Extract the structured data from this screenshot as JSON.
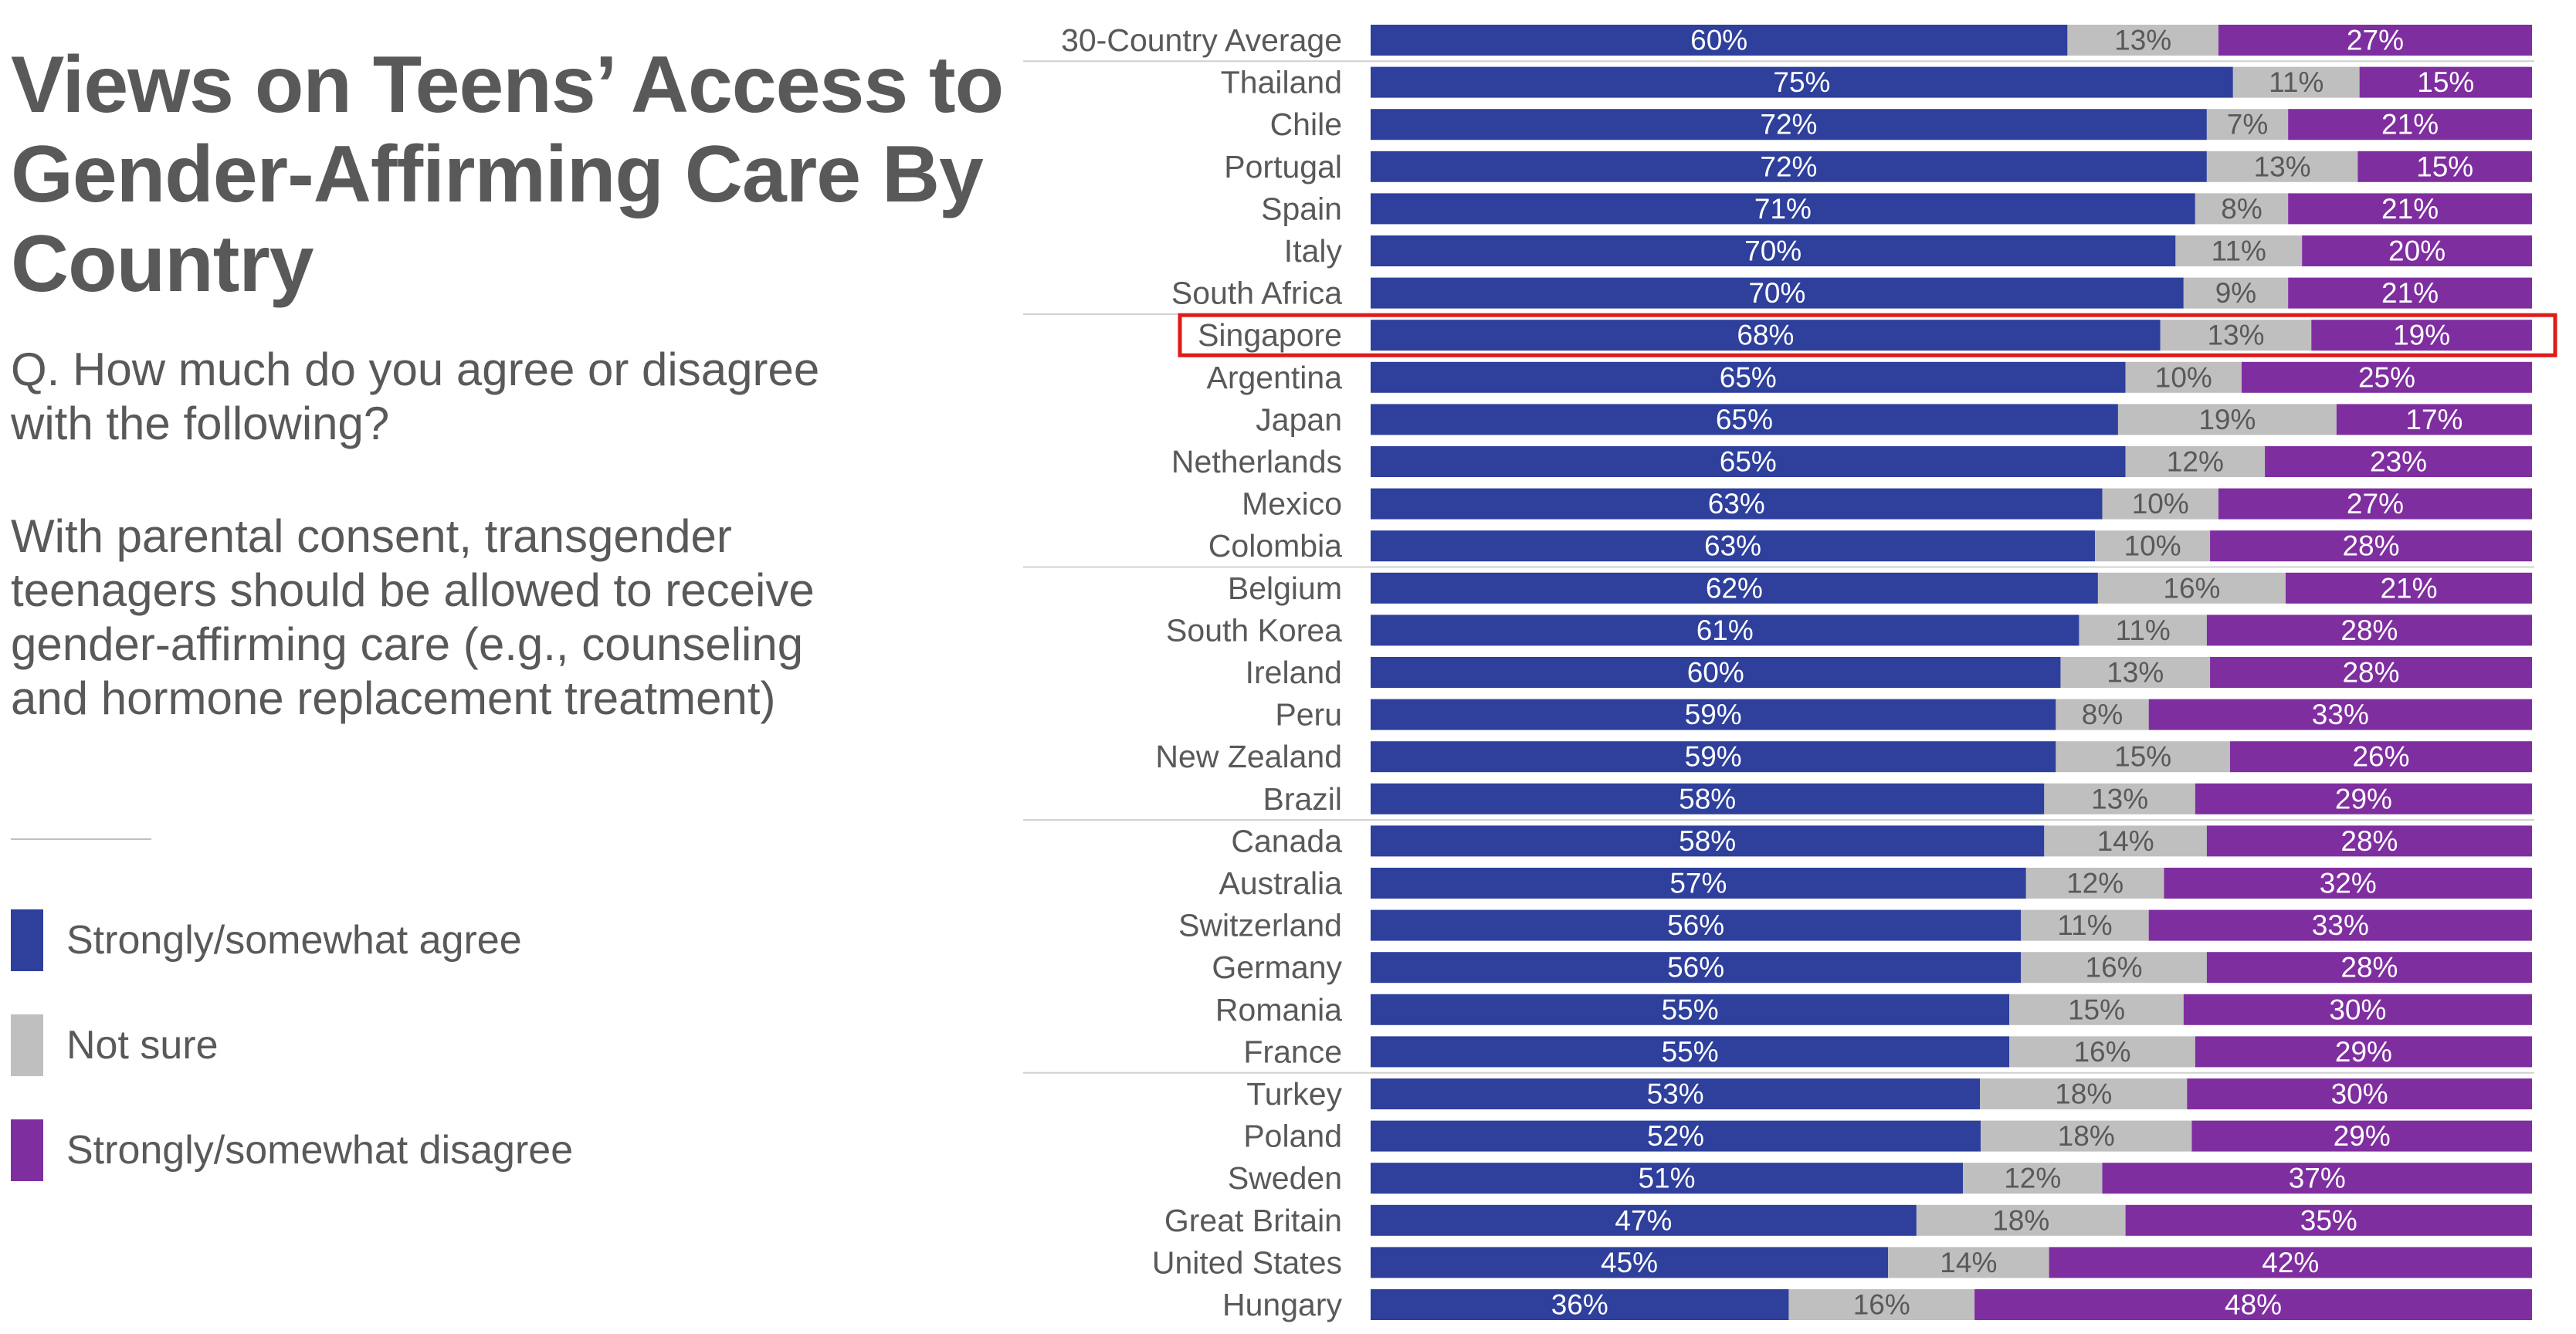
{
  "title": "Views on Teens’ Access to Gender-Affirming Care By Country",
  "question": "Q. How much do you agree or disagree with the following?",
  "statement": "With parental consent, transgender teenagers should be allowed to receive gender-affirming care (e.g., counseling and hormone replacement treatment)",
  "legend": [
    {
      "label": "Strongly/somewhat agree",
      "color": "#2e3f9c"
    },
    {
      "label": "Not sure",
      "color": "#bfbfbf"
    },
    {
      "label": "Strongly/somewhat disagree",
      "color": "#7f2ea0"
    }
  ],
  "highlight": {
    "category": "Singapore",
    "color": "#e01a1a"
  },
  "chart_data": {
    "type": "bar",
    "orientation": "horizontal",
    "stacked": true,
    "categories": [
      "30-Country Average",
      "Thailand",
      "Chile",
      "Portugal",
      "Spain",
      "Italy",
      "South Africa",
      "Singapore",
      "Argentina",
      "Japan",
      "Netherlands",
      "Mexico",
      "Colombia",
      "Belgium",
      "South Korea",
      "Ireland",
      "Peru",
      "New Zealand",
      "Brazil",
      "Canada",
      "Australia",
      "Switzerland",
      "Germany",
      "Romania",
      "France",
      "Turkey",
      "Poland",
      "Sweden",
      "Great Britain",
      "United States",
      "Hungary"
    ],
    "series": [
      {
        "name": "Strongly/somewhat agree",
        "color": "#2e3f9c",
        "values": [
          60,
          75,
          72,
          72,
          71,
          70,
          70,
          68,
          65,
          65,
          65,
          63,
          63,
          62,
          61,
          60,
          59,
          59,
          58,
          58,
          57,
          56,
          56,
          55,
          55,
          53,
          52,
          51,
          47,
          45,
          36
        ]
      },
      {
        "name": "Not sure",
        "color": "#bfbfbf",
        "values": [
          13,
          11,
          7,
          13,
          8,
          11,
          9,
          13,
          10,
          19,
          12,
          10,
          10,
          16,
          11,
          13,
          8,
          15,
          13,
          14,
          12,
          11,
          16,
          15,
          16,
          18,
          18,
          12,
          18,
          14,
          16
        ]
      },
      {
        "name": "Strongly/somewhat disagree",
        "color": "#7f2ea0",
        "values": [
          27,
          15,
          21,
          15,
          21,
          20,
          21,
          19,
          25,
          17,
          23,
          27,
          28,
          21,
          28,
          28,
          33,
          26,
          29,
          28,
          32,
          33,
          28,
          30,
          29,
          30,
          29,
          37,
          35,
          42,
          48
        ]
      }
    ],
    "value_suffix": "%",
    "group_separators_after": [
      "30-Country Average",
      "South Africa",
      "Colombia",
      "Brazil",
      "France"
    ],
    "xlim": [
      0,
      100
    ],
    "grid": false
  }
}
